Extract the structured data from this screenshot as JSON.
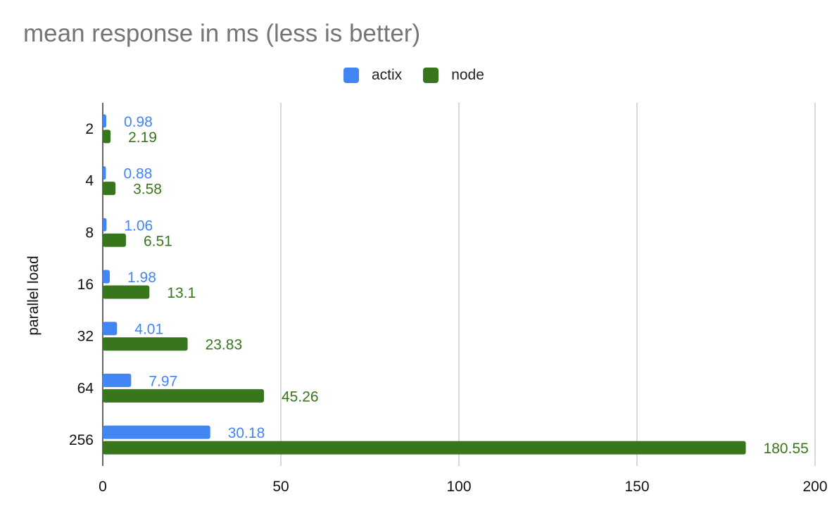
{
  "chart_data": {
    "type": "bar",
    "orientation": "horizontal",
    "title": "mean response in ms (less is better)",
    "xlabel": "",
    "ylabel": "parallel load",
    "categories": [
      "2",
      "4",
      "8",
      "16",
      "32",
      "64",
      "256"
    ],
    "series": [
      {
        "name": "actix",
        "color": "#4285F4",
        "values": [
          0.98,
          0.88,
          1.06,
          1.98,
          4.01,
          7.97,
          30.18
        ],
        "labels": [
          "0.98",
          "0.88",
          "1.06",
          "1.98",
          "4.01",
          "7.97",
          "30.18"
        ]
      },
      {
        "name": "node",
        "color": "#38761D",
        "values": [
          2.19,
          3.58,
          6.51,
          13.1,
          23.83,
          45.26,
          180.55
        ],
        "labels": [
          "2.19",
          "3.58",
          "6.51",
          "13.1",
          "23.83",
          "45.26",
          "180.55"
        ]
      }
    ],
    "xlim": [
      0,
      200
    ],
    "xticks": [
      "0",
      "50",
      "100",
      "150",
      "200"
    ],
    "grid": true,
    "legend_position": "top"
  }
}
